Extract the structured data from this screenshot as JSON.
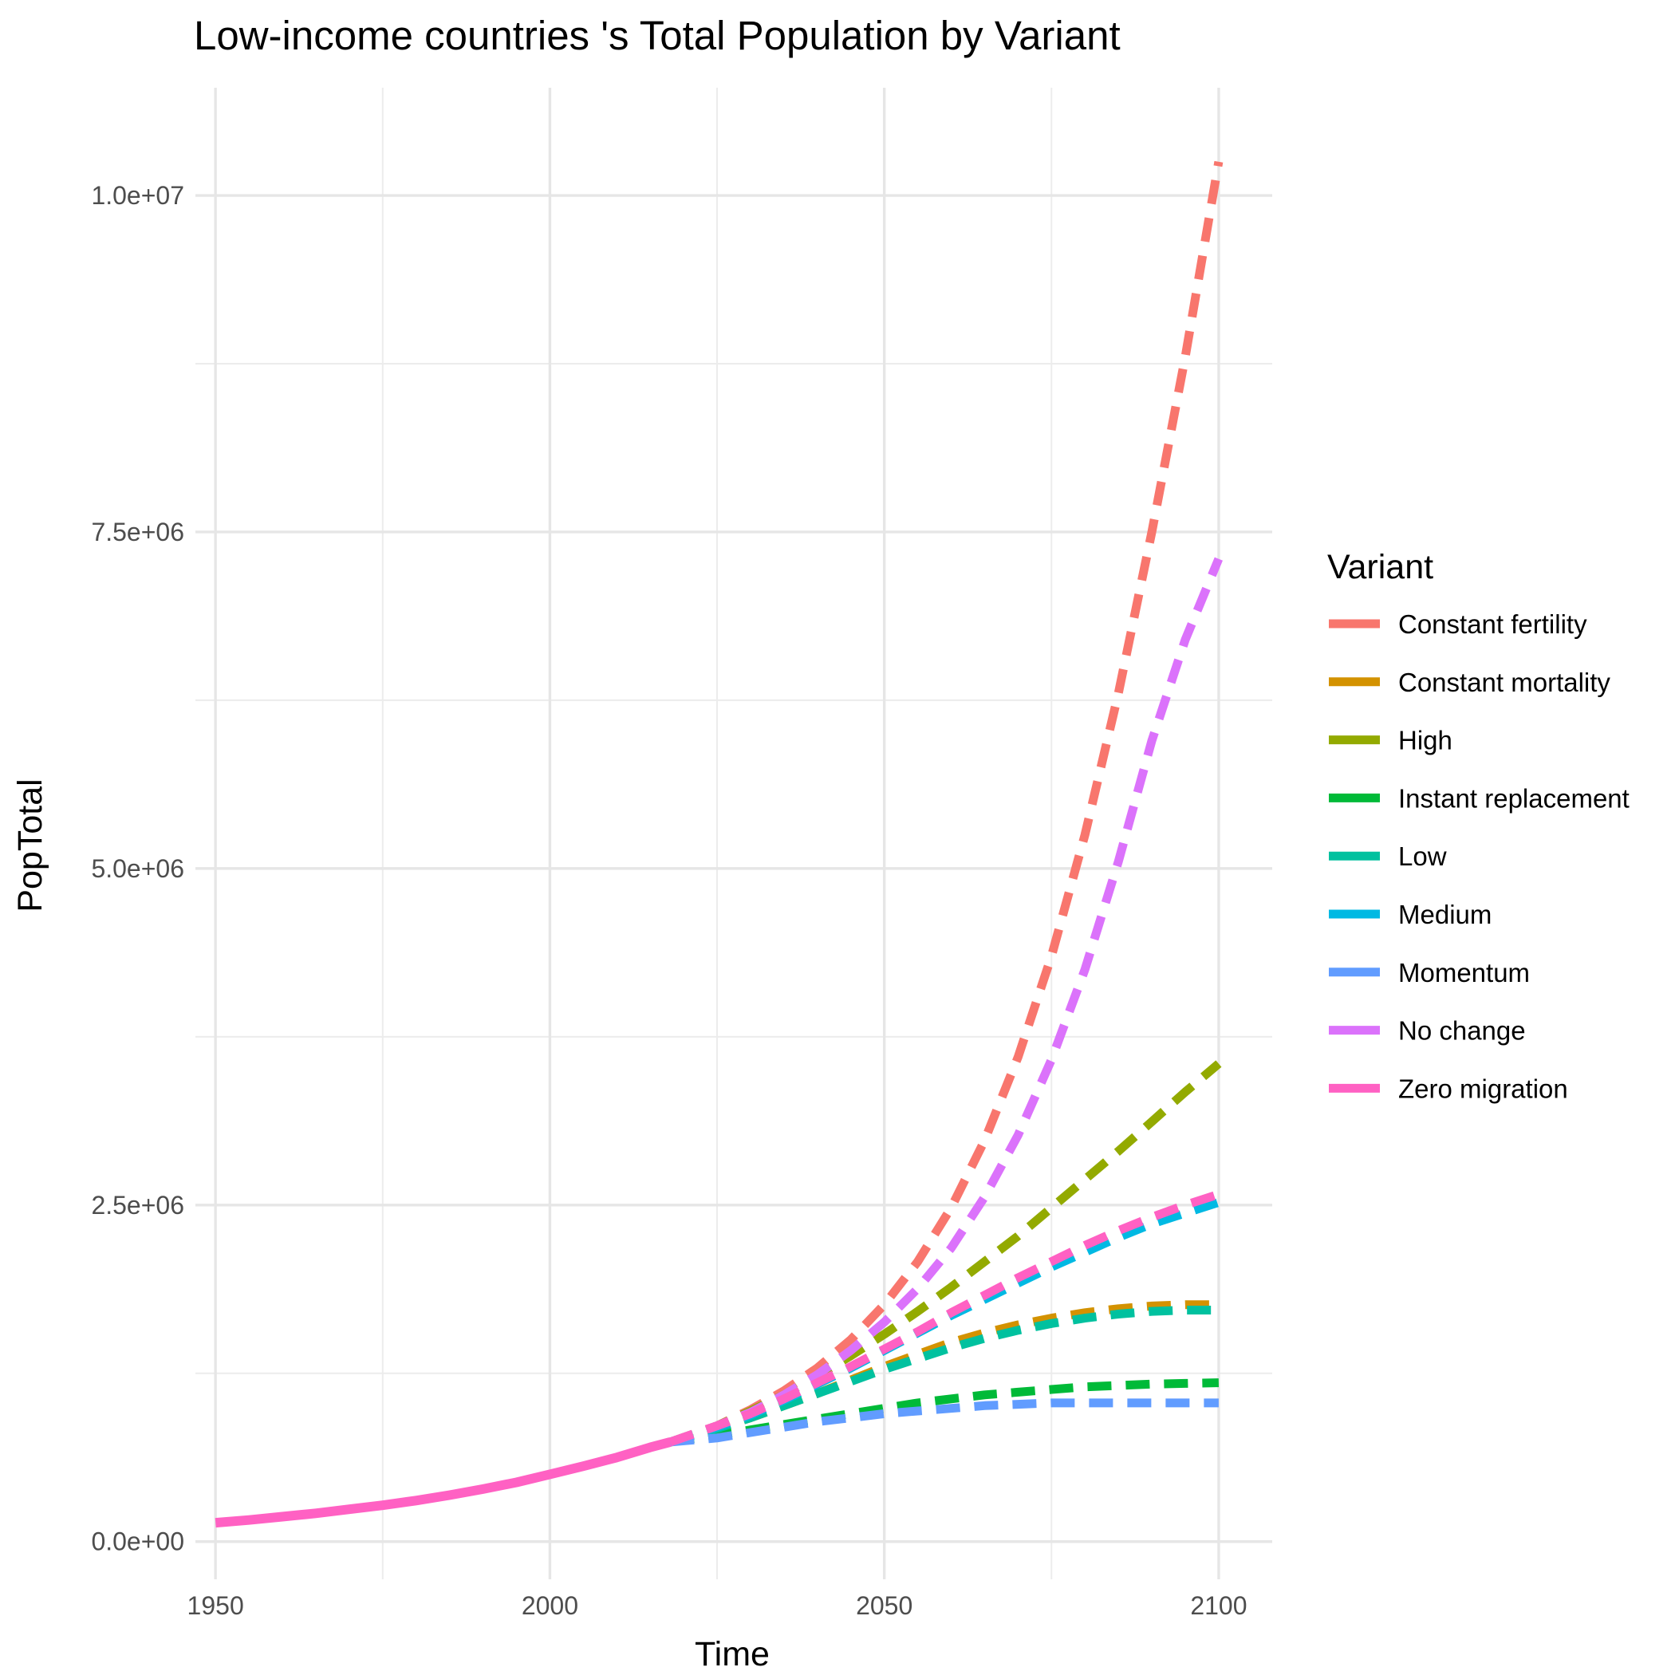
{
  "chart_data": {
    "type": "line",
    "title": "Low-income countries 's Total Population by Variant",
    "xlabel": "Time",
    "ylabel": "PopTotal",
    "xlim": [
      1947,
      2108
    ],
    "ylim": [
      -280000,
      10800000
    ],
    "x_ticks": [
      1950,
      2000,
      2050,
      2100
    ],
    "x_tick_labels": [
      "1950",
      "2000",
      "2050",
      "2100"
    ],
    "x_minor_ticks": [
      1975,
      2025,
      2075
    ],
    "y_ticks": [
      0,
      2500000,
      5000000,
      7500000,
      10000000
    ],
    "y_tick_labels": [
      "0.0e+00",
      "2.5e+06",
      "5.0e+06",
      "7.5e+06",
      "1.0e+07"
    ],
    "y_minor_ticks": [
      1250000,
      3750000,
      6250000,
      8750000
    ],
    "grid": true,
    "legend": {
      "title": "Variant",
      "position": "right"
    },
    "historical": {
      "name": "Zero migration",
      "line_style": "solid",
      "x": [
        1950,
        1955,
        1960,
        1965,
        1970,
        1975,
        1980,
        1985,
        1990,
        1995,
        2000,
        2005,
        2010,
        2015,
        2018
      ],
      "values": [
        140000,
        160000,
        185000,
        210000,
        240000,
        270000,
        305000,
        345000,
        390000,
        440000,
        500000,
        560000,
        625000,
        700000,
        740000
      ]
    },
    "projection_x": [
      2018,
      2025,
      2030,
      2035,
      2040,
      2045,
      2050,
      2055,
      2060,
      2065,
      2070,
      2075,
      2080,
      2085,
      2090,
      2095,
      2100
    ],
    "series": [
      {
        "name": "Constant fertility",
        "color": "#F8766D",
        "line_style": "dashed",
        "values": [
          740000,
          860000,
          980000,
          1120000,
          1290000,
          1500000,
          1760000,
          2080000,
          2480000,
          2980000,
          3600000,
          4350000,
          5250000,
          6300000,
          7500000,
          8800000,
          10250000
        ]
      },
      {
        "name": "Constant mortality",
        "color": "#D39200",
        "line_style": "dashed",
        "values": [
          740000,
          840000,
          920000,
          1010000,
          1100000,
          1200000,
          1300000,
          1390000,
          1480000,
          1550000,
          1610000,
          1660000,
          1700000,
          1730000,
          1750000,
          1760000,
          1760000
        ]
      },
      {
        "name": "High",
        "color": "#93AA00",
        "line_style": "dashed",
        "values": [
          740000,
          860000,
          970000,
          1090000,
          1230000,
          1380000,
          1540000,
          1710000,
          1890000,
          2080000,
          2270000,
          2480000,
          2690000,
          2900000,
          3120000,
          3340000,
          3550000
        ]
      },
      {
        "name": "Instant replacement",
        "color": "#00BA38",
        "line_style": "dashed",
        "values": [
          740000,
          790000,
          830000,
          870000,
          910000,
          950000,
          990000,
          1030000,
          1060000,
          1090000,
          1110000,
          1130000,
          1150000,
          1160000,
          1170000,
          1175000,
          1180000
        ]
      },
      {
        "name": "Low",
        "color": "#00C19F",
        "line_style": "dashed",
        "values": [
          740000,
          840000,
          920000,
          1010000,
          1100000,
          1190000,
          1280000,
          1360000,
          1440000,
          1510000,
          1570000,
          1620000,
          1660000,
          1690000,
          1710000,
          1720000,
          1720000
        ]
      },
      {
        "name": "Medium",
        "color": "#00B9E3",
        "line_style": "dashed",
        "values": [
          740000,
          850000,
          940000,
          1050000,
          1170000,
          1290000,
          1420000,
          1550000,
          1680000,
          1800000,
          1920000,
          2040000,
          2150000,
          2260000,
          2360000,
          2440000,
          2520000
        ]
      },
      {
        "name": "Momentum",
        "color": "#619CFF",
        "line_style": "dashed",
        "values": [
          740000,
          770000,
          810000,
          850000,
          890000,
          920000,
          950000,
          970000,
          990000,
          1010000,
          1020000,
          1030000,
          1030000,
          1030000,
          1030000,
          1030000,
          1030000
        ]
      },
      {
        "name": "No change",
        "color": "#DB72FB",
        "line_style": "dashed",
        "values": [
          740000,
          860000,
          960000,
          1090000,
          1240000,
          1420000,
          1630000,
          1880000,
          2180000,
          2560000,
          3020000,
          3580000,
          4250000,
          5050000,
          5950000,
          6700000,
          7300000
        ]
      },
      {
        "name": "Zero migration",
        "color": "#FF61C3",
        "line_style": "dashed",
        "values": [
          740000,
          860000,
          950000,
          1060000,
          1180000,
          1300000,
          1430000,
          1560000,
          1700000,
          1830000,
          1960000,
          2080000,
          2200000,
          2310000,
          2410000,
          2500000,
          2580000
        ]
      }
    ]
  }
}
